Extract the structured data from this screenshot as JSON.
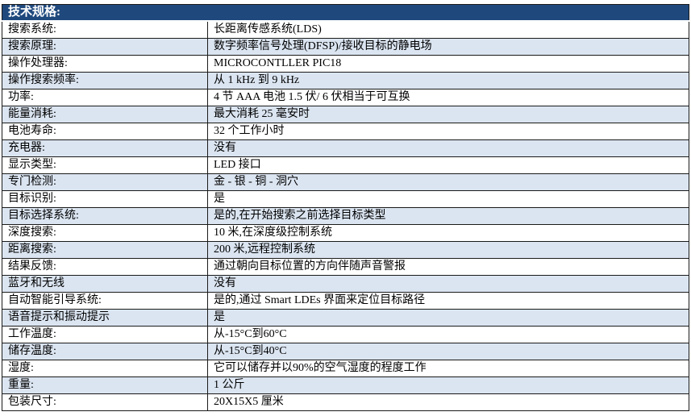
{
  "table": {
    "header": "技术规格:",
    "colors": {
      "header_bg": "#1F497D",
      "header_text": "#FFFFFF",
      "band_bg": "#DBE5F1",
      "alt_bg": "#FFFFFF",
      "border": "#1A1A1A",
      "text": "#000000"
    },
    "rows": [
      {
        "label": "搜索系统:",
        "value": "长距离传感系统(LDS)"
      },
      {
        "label": "搜索原理:",
        "value": "数字频率信号处理(DFSP)/接收目标的静电场"
      },
      {
        "label": "操作处理器:",
        "value": "MICROCONTLLER PIC18"
      },
      {
        "label": "操作搜索频率:",
        "value": "从 1 kHz 到 9 kHz"
      },
      {
        "label": "功率:",
        "value": "4 节 AAA 电池 1.5 伏/ 6 伏相当于可互换"
      },
      {
        "label": "能量消耗:",
        "value": "最大消耗 25 毫安时"
      },
      {
        "label": "电池寿命:",
        "value": "32 个工作小时"
      },
      {
        "label": "充电器:",
        "value": "没有"
      },
      {
        "label": "显示类型:",
        "value": "LED 接口"
      },
      {
        "label": "专门检测:",
        "value": "金 - 银 - 铜 - 洞穴"
      },
      {
        "label": "目标识别:",
        "value": "是"
      },
      {
        "label": "目标选择系统:",
        "value": "是的,在开始搜索之前选择目标类型"
      },
      {
        "label": "深度搜索:",
        "value": "10 米,在深度级控制系统"
      },
      {
        "label": "距离搜索:",
        "value": "200 米,远程控制系统"
      },
      {
        "label": "结果反馈:",
        "value": "通过朝向目标位置的方向伴随声音警报"
      },
      {
        "label": "蓝牙和无线",
        "value": "没有"
      },
      {
        "label": "自动智能引导系统:",
        "value": "是的,通过 Smart LDEs 界面来定位目标路径"
      },
      {
        "label": "语音提示和振动提示",
        "value": "是"
      },
      {
        "label": "工作温度:",
        "value": "从-15°C到60°C"
      },
      {
        "label": "储存温度:",
        "value": "从-15°C到40°C"
      },
      {
        "label": "湿度:",
        "value": "它可以储存并以90%的空气湿度的程度工作"
      },
      {
        "label": "重量:",
        "value": "1 公斤"
      },
      {
        "label": "包装尺寸:",
        "value": "20X15X5 厘米"
      }
    ]
  }
}
